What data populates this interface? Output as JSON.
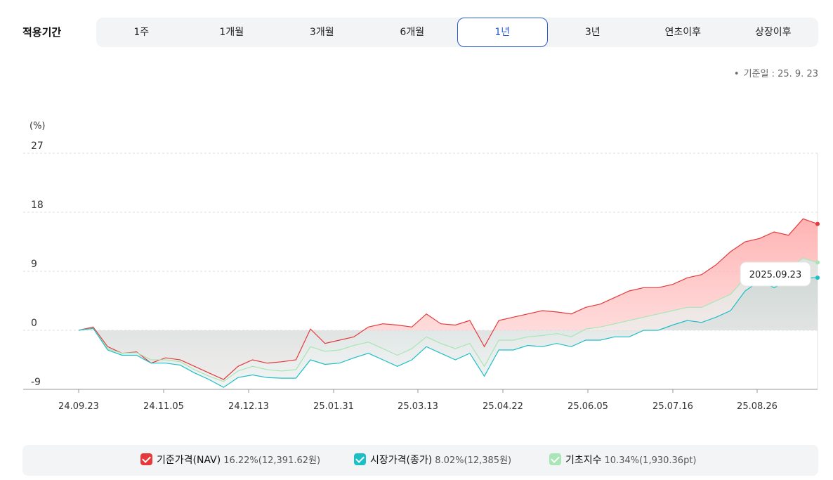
{
  "period": {
    "label": "적용기간",
    "tabs": [
      "1주",
      "1개월",
      "3개월",
      "6개월",
      "1년",
      "3년",
      "연초이후",
      "상장이후"
    ],
    "active_index": 4
  },
  "base_date": "기준일 : 25. 9. 23",
  "tooltip": "2025.09.23",
  "colors": {
    "nav": "#e5393b",
    "market": "#1dbfc6",
    "index": "#a8e6b5",
    "active_tab": "#2a5bd7"
  },
  "legend": [
    {
      "name": "기준가격(NAV)",
      "value": "16.22%(12,391.62원)",
      "color": "#e5393b"
    },
    {
      "name": "시장가격(종가)",
      "value": "8.02%(12,385원)",
      "color": "#1dbfc6"
    },
    {
      "name": "기초지수",
      "value": "10.34%(1,930.36pt)",
      "color": "#a8e6b5"
    }
  ],
  "chart_data": {
    "type": "area",
    "ylabel": "(%)",
    "ylim": [
      -9,
      27
    ],
    "yticks": [
      "27",
      "18",
      "9",
      "0",
      "-9"
    ],
    "xticks": [
      "24.09.23",
      "24.11.05",
      "24.12.13",
      "25.01.31",
      "25.03.13",
      "25.04.22",
      "25.06.05",
      "25.07.16",
      "25.08.26"
    ],
    "series": [
      {
        "name": "기준가격(NAV)",
        "color": "#e5393b",
        "values": [
          0,
          0.5,
          -2.5,
          -3.5,
          -3.3,
          -5,
          -4.2,
          -4.5,
          -5.5,
          -6.5,
          -7.5,
          -5.5,
          -4.5,
          -5,
          -4.8,
          -4.5,
          0.2,
          -2,
          -1.5,
          -1,
          0.5,
          1,
          0.8,
          0.5,
          2.5,
          1,
          0.8,
          1.5,
          -2.5,
          1.5,
          2,
          2.5,
          3,
          2.8,
          2.5,
          3.5,
          4,
          5,
          6,
          6.5,
          6.5,
          7,
          8,
          8.5,
          10,
          12,
          13.5,
          14,
          15,
          14.5,
          17,
          16.22
        ]
      },
      {
        "name": "시장가격(종가)",
        "color": "#1dbfc6",
        "values": [
          0,
          0.3,
          -3,
          -3.8,
          -3.8,
          -5,
          -5,
          -5.3,
          -6.5,
          -7.5,
          -8.7,
          -7.2,
          -6.8,
          -7.2,
          -7.3,
          -7.3,
          -4.5,
          -5.2,
          -5,
          -4.2,
          -3.5,
          -4.5,
          -5.5,
          -4.5,
          -2.5,
          -3.5,
          -4.5,
          -3.5,
          -7,
          -3,
          -3,
          -2.3,
          -2.5,
          -2,
          -2.5,
          -1.5,
          -1.5,
          -1,
          -1,
          0,
          0,
          0.8,
          1.5,
          1.2,
          2,
          3,
          6,
          7.5,
          6.5,
          7.5,
          8,
          8.02
        ]
      },
      {
        "name": "기초지수",
        "color": "#a8e6b5",
        "values": [
          0,
          0.3,
          -2.8,
          -3.5,
          -3.4,
          -4.5,
          -4.5,
          -4.8,
          -6,
          -7,
          -7.8,
          -6.2,
          -5.5,
          -6,
          -6.2,
          -6,
          -2.5,
          -3.2,
          -3,
          -2.3,
          -1.8,
          -2.8,
          -3.8,
          -2.8,
          -1,
          -2,
          -2.8,
          -2,
          -5.5,
          -1.5,
          -1.5,
          -1,
          -0.8,
          -0.5,
          -1,
          0.2,
          0.5,
          1,
          1.5,
          2,
          2.5,
          3,
          3.5,
          3.5,
          4.5,
          5.5,
          8,
          9,
          8,
          9.5,
          11,
          10.34
        ]
      }
    ]
  }
}
